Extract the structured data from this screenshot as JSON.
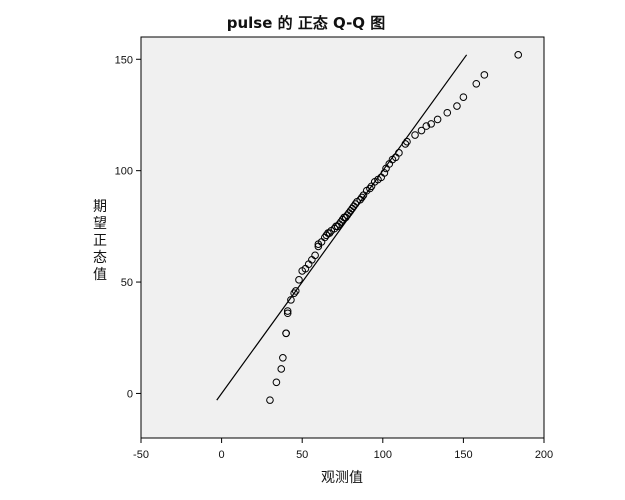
{
  "chart_data": {
    "type": "scatter",
    "title": "pulse 的 正态 Q-Q 图",
    "xlabel": "观测值",
    "ylabel": "期望正态值",
    "xlim": [
      -50,
      200
    ],
    "ylim": [
      -20,
      160
    ],
    "xticks": [
      -50,
      0,
      50,
      100,
      150,
      200
    ],
    "yticks": [
      0,
      50,
      100,
      150
    ],
    "grid": false,
    "legend": "none",
    "reference_line": {
      "x": [
        -3,
        152
      ],
      "y": [
        -3,
        152
      ]
    },
    "points": {
      "x": [
        30,
        34,
        37,
        38,
        40,
        40,
        41,
        41,
        43,
        45,
        46,
        48,
        50,
        52,
        54,
        56,
        58,
        60,
        60,
        62,
        64,
        65,
        66,
        67,
        68,
        70,
        71,
        72,
        73,
        74,
        75,
        76,
        77,
        78,
        79,
        80,
        81,
        82,
        83,
        84,
        86,
        87,
        88,
        90,
        92,
        93,
        95,
        97,
        99,
        101,
        102,
        104,
        106,
        108,
        110,
        114,
        115,
        120,
        124,
        127,
        130,
        134,
        140,
        146,
        150,
        158,
        163,
        184
      ],
      "y": [
        -3,
        5,
        11,
        16,
        27,
        27,
        36,
        37,
        42,
        45,
        46,
        51,
        55,
        56,
        58,
        60,
        62,
        66,
        67,
        68,
        70,
        71,
        72,
        72,
        73,
        74,
        75,
        75,
        76,
        77,
        78,
        79,
        79,
        80,
        81,
        82,
        83,
        84,
        85,
        86,
        87,
        88,
        89,
        91,
        92,
        93,
        95,
        96,
        97,
        99,
        101,
        103,
        105,
        106,
        108,
        112,
        113,
        116,
        118,
        120,
        121,
        123,
        126,
        129,
        133,
        139,
        143,
        152
      ]
    }
  }
}
